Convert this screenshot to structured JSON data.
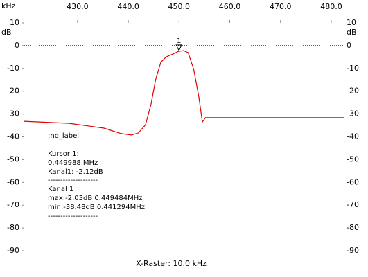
{
  "chart_data": {
    "type": "line",
    "x_unit": "kHz",
    "y_unit": "dB",
    "x_axis_label": "X-Raster: 10.0 kHz",
    "xlim": [
      419.5,
      482.6
    ],
    "ylim": [
      -90,
      10
    ],
    "xticks": [
      {
        "value": 430,
        "label": "430.0"
      },
      {
        "value": 440,
        "label": "440.0"
      },
      {
        "value": 450,
        "label": "450.0"
      },
      {
        "value": 460,
        "label": "460.0"
      },
      {
        "value": 470,
        "label": "470.0"
      },
      {
        "value": 480,
        "label": "480.0"
      }
    ],
    "yticks": [
      10,
      0,
      -10,
      -20,
      -30,
      -40,
      -50,
      -60,
      -70,
      -80,
      -90
    ],
    "reference_line": 0,
    "series": [
      {
        "color": "#e00000",
        "x": [
          419.5,
          428.4,
          435.2,
          438.6,
          440.6,
          442.0,
          443.4,
          444.5,
          445.4,
          446.4,
          447.5,
          448.8,
          449.9,
          450.9,
          451.8,
          452.9,
          453.9,
          454.6,
          455.2,
          457.0,
          469.3,
          482.5
        ],
        "values": [
          -33.2,
          -34.1,
          -36.2,
          -38.6,
          -39.2,
          -38.3,
          -34.7,
          -25.6,
          -14.9,
          -7.3,
          -4.9,
          -3.7,
          -2.5,
          -2.2,
          -3.1,
          -10.4,
          -22.5,
          -33.5,
          -31.6,
          -31.6,
          -31.6,
          -31.6
        ]
      }
    ],
    "cursor": {
      "x": 449.988,
      "y": -2.12,
      "label": "1"
    },
    "notes": [
      ";no_label",
      "Kursor 1:",
      "0.449988 MHz",
      "Kanal1: -2.12dB",
      "--------------------",
      "Kanal 1",
      "max:-2.03dB 0.449484MHz",
      "min:-38.48dB 0.441294MHz",
      "--------------------"
    ]
  }
}
